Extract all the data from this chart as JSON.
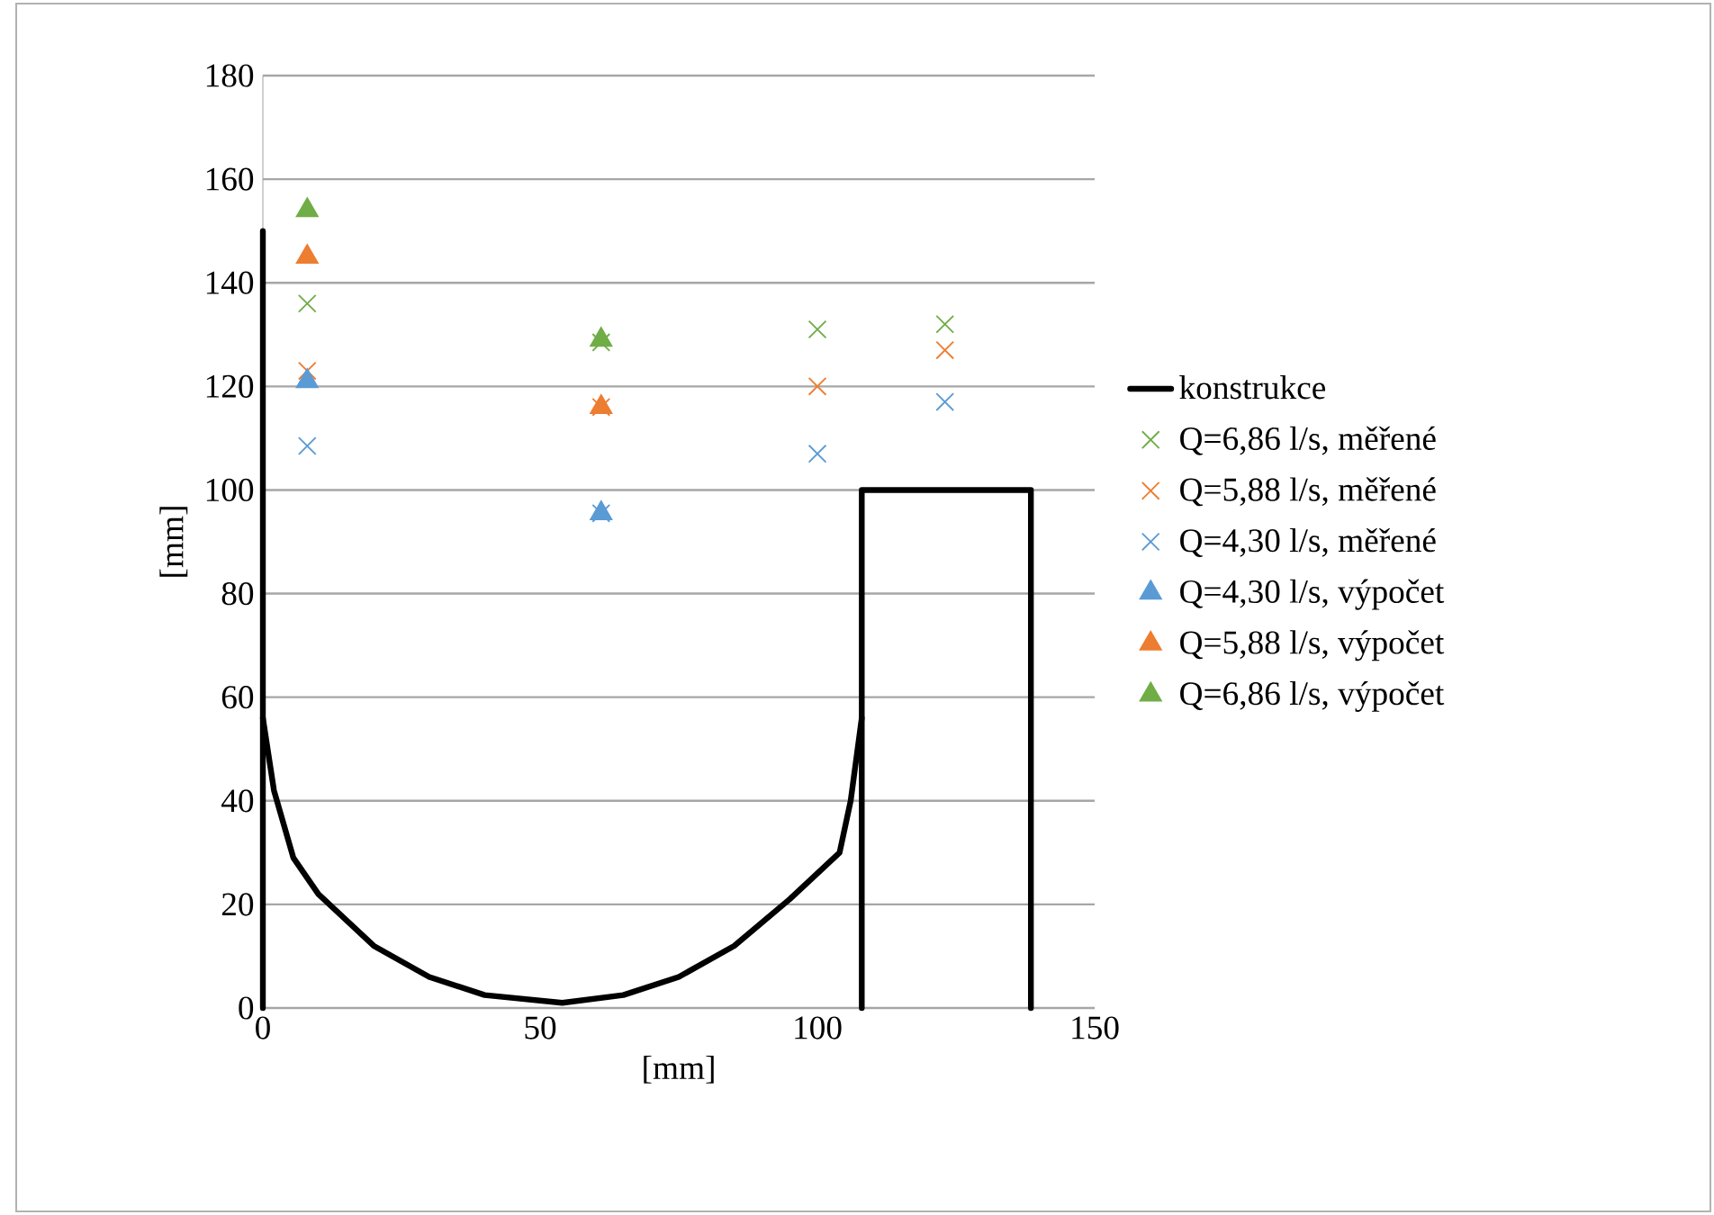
{
  "chart_data": {
    "type": "scatter",
    "xlabel": "[mm]",
    "ylabel": "[mm]",
    "xlim": [
      0,
      150
    ],
    "ylim": [
      0,
      180
    ],
    "xticks": [
      0,
      50,
      100,
      150
    ],
    "yticks": [
      0,
      20,
      40,
      60,
      80,
      100,
      120,
      140,
      160,
      180
    ],
    "grid": "y",
    "legend": "right",
    "series": [
      {
        "name": "konstrukce",
        "type": "line",
        "color": "#000000",
        "marker": "none",
        "x": [
          0,
          0,
          2,
          5.5,
          10,
          20,
          30,
          40,
          54,
          65,
          75,
          85,
          95,
          104,
          106,
          108,
          108,
          138.5,
          138.5
        ],
        "values": [
          150,
          56,
          42,
          29,
          22,
          12,
          6,
          2.5,
          1,
          2.5,
          6,
          12,
          21,
          30,
          40,
          56,
          100,
          100,
          0
        ]
      },
      {
        "type": "line",
        "color": "#000000",
        "marker": "none",
        "x": [
          0,
          0
        ],
        "values": [
          56,
          0
        ]
      },
      {
        "type": "line",
        "color": "#000000",
        "marker": "none",
        "x": [
          108,
          108
        ],
        "values": [
          56,
          0
        ]
      },
      {
        "name": "Q=6,86 l/s, měřené",
        "color": "#70ad47",
        "marker": "cross",
        "x": [
          8,
          61,
          100,
          123
        ],
        "values": [
          136,
          128.5,
          131,
          132
        ]
      },
      {
        "name": "Q=5,88 l/s, měřené",
        "color": "#ed7d31",
        "marker": "cross",
        "x": [
          8,
          61,
          100,
          123
        ],
        "values": [
          123,
          116,
          120,
          127
        ]
      },
      {
        "name": "Q=4,30 l/s, měřené",
        "color": "#5b9bd5",
        "marker": "cross",
        "x": [
          8,
          61,
          100,
          123
        ],
        "values": [
          108.5,
          95.5,
          107,
          117
        ]
      },
      {
        "name": "Q=4,30 l/s, výpočet",
        "color": "#5b9bd5",
        "marker": "triangle",
        "x": [
          8,
          61
        ],
        "values": [
          121,
          95.5
        ]
      },
      {
        "name": "Q=5,88 l/s, výpočet",
        "color": "#ed7d31",
        "marker": "triangle",
        "x": [
          8,
          61
        ],
        "values": [
          145,
          116
        ]
      },
      {
        "name": "Q=6,86 l/s, výpočet",
        "color": "#70ad47",
        "marker": "triangle",
        "x": [
          8,
          61
        ],
        "values": [
          154,
          129
        ]
      }
    ]
  }
}
